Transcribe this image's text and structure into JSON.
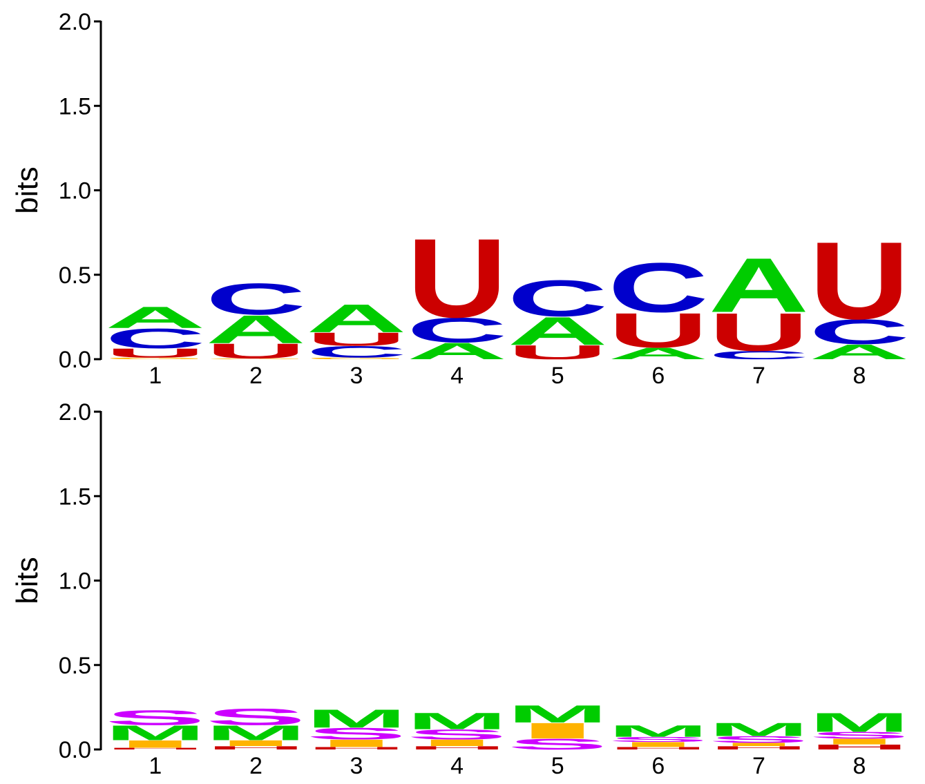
{
  "colors": {
    "A": "#00cc00",
    "C": "#0000cc",
    "U": "#cc0000",
    "G": "#ffb300",
    "M": "#00cc00",
    "S": "#cc00ff",
    "I": "#ffb300",
    "H": "#cc0000",
    "axis": "#000000"
  },
  "chart_data": [
    {
      "type": "sequence-logo",
      "ylabel": "bits",
      "ylim": [
        0,
        2
      ],
      "yticks": [
        "0.0",
        "0.5",
        "1.0",
        "1.5",
        "2.0"
      ],
      "xticks": [
        "1",
        "2",
        "3",
        "4",
        "5",
        "6",
        "7",
        "8"
      ],
      "positions": [
        [
          {
            "l": "G",
            "h": 0.01
          },
          {
            "l": "U",
            "h": 0.055
          },
          {
            "l": "C",
            "h": 0.12
          },
          {
            "l": "A",
            "h": 0.13
          }
        ],
        [
          {
            "l": "G",
            "h": 0.005
          },
          {
            "l": "U",
            "h": 0.09
          },
          {
            "l": "A",
            "h": 0.17
          },
          {
            "l": "C",
            "h": 0.19
          }
        ],
        [
          {
            "l": "G",
            "h": 0.01
          },
          {
            "l": "C",
            "h": 0.07
          },
          {
            "l": "U",
            "h": 0.08
          },
          {
            "l": "A",
            "h": 0.17
          }
        ],
        [
          {
            "l": "A",
            "h": 0.1
          },
          {
            "l": "C",
            "h": 0.15
          },
          {
            "l": "U",
            "h": 0.48
          }
        ],
        [
          {
            "l": "U",
            "h": 0.085
          },
          {
            "l": "A",
            "h": 0.17
          },
          {
            "l": "C",
            "h": 0.22
          }
        ],
        [
          {
            "l": "A",
            "h": 0.07
          },
          {
            "l": "U",
            "h": 0.21
          },
          {
            "l": "C",
            "h": 0.3
          }
        ],
        [
          {
            "l": "C",
            "h": 0.05
          },
          {
            "l": "U",
            "h": 0.23
          },
          {
            "l": "A",
            "h": 0.33
          }
        ],
        [
          {
            "l": "A",
            "h": 0.09
          },
          {
            "l": "C",
            "h": 0.15
          },
          {
            "l": "U",
            "h": 0.47
          }
        ]
      ]
    },
    {
      "type": "sequence-logo",
      "ylabel": "bits",
      "ylim": [
        0,
        2
      ],
      "yticks": [
        "0.0",
        "0.5",
        "1.0",
        "1.5",
        "2.0"
      ],
      "xticks": [
        "1",
        "2",
        "3",
        "4",
        "5",
        "6",
        "7",
        "8"
      ],
      "positions": [
        [
          {
            "l": "H",
            "h": 0.01
          },
          {
            "l": "I",
            "h": 0.045
          },
          {
            "l": "M",
            "h": 0.09
          },
          {
            "l": "S",
            "h": 0.09
          }
        ],
        [
          {
            "l": "H",
            "h": 0.02
          },
          {
            "l": "I",
            "h": 0.035
          },
          {
            "l": "M",
            "h": 0.09
          },
          {
            "l": "S",
            "h": 0.1
          }
        ],
        [
          {
            "l": "H",
            "h": 0.015
          },
          {
            "l": "I",
            "h": 0.045
          },
          {
            "l": "S",
            "h": 0.07
          },
          {
            "l": "M",
            "h": 0.11
          }
        ],
        [
          {
            "l": "H",
            "h": 0.02
          },
          {
            "l": "I",
            "h": 0.04
          },
          {
            "l": "S",
            "h": 0.06
          },
          {
            "l": "M",
            "h": 0.1
          }
        ],
        [
          {
            "l": "S",
            "h": 0.065
          },
          {
            "l": "I",
            "h": 0.095
          },
          {
            "l": "M",
            "h": 0.105
          }
        ],
        [
          {
            "l": "H",
            "h": 0.015
          },
          {
            "l": "I",
            "h": 0.03
          },
          {
            "l": "S",
            "h": 0.03
          },
          {
            "l": "M",
            "h": 0.07
          }
        ],
        [
          {
            "l": "H",
            "h": 0.02
          },
          {
            "l": "I",
            "h": 0.02
          },
          {
            "l": "S",
            "h": 0.04
          },
          {
            "l": "M",
            "h": 0.08
          }
        ],
        [
          {
            "l": "H",
            "h": 0.03
          },
          {
            "l": "I",
            "h": 0.035
          },
          {
            "l": "S",
            "h": 0.04
          },
          {
            "l": "M",
            "h": 0.115
          }
        ]
      ]
    }
  ]
}
